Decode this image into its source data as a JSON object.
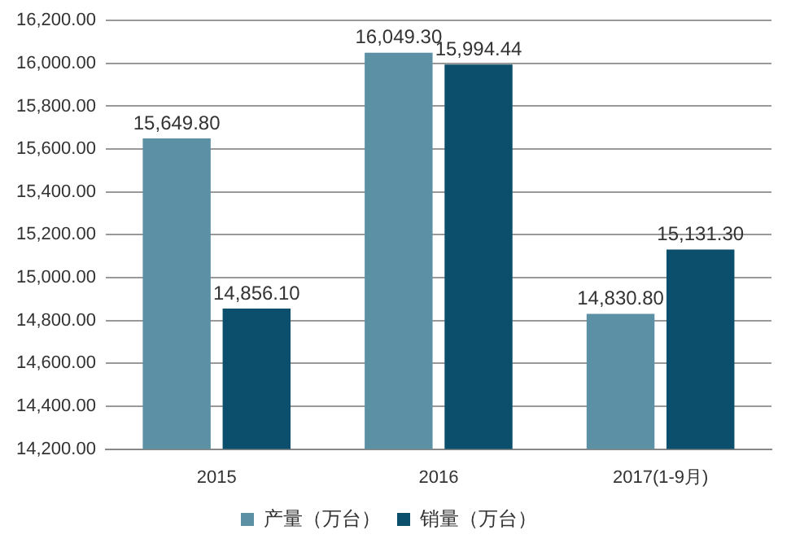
{
  "chart_data": {
    "type": "bar",
    "categories": [
      "2015",
      "2016",
      "2017(1-9月)"
    ],
    "series": [
      {
        "name": "产量（万台）",
        "color": "#5b90a5",
        "values": [
          15649.8,
          16049.3,
          14830.8
        ],
        "value_labels": [
          "15,649.80",
          "16,049.30",
          "14,830.80"
        ]
      },
      {
        "name": "销量（万台）",
        "color": "#0b4f6c",
        "values": [
          14856.1,
          15994.44,
          15131.3
        ],
        "value_labels": [
          "14,856.10",
          "15,994.44",
          "15,131.30"
        ]
      }
    ],
    "ylim": [
      14200,
      16200
    ],
    "yticks": [
      {
        "value": 14200,
        "label": "14,200.00"
      },
      {
        "value": 14400,
        "label": "14,400.00"
      },
      {
        "value": 14600,
        "label": "14,600.00"
      },
      {
        "value": 14800,
        "label": "14,800.00"
      },
      {
        "value": 15000,
        "label": "15,000.00"
      },
      {
        "value": 15200,
        "label": "15,200.00"
      },
      {
        "value": 15400,
        "label": "15,400.00"
      },
      {
        "value": 15600,
        "label": "15,600.00"
      },
      {
        "value": 15800,
        "label": "15,800.00"
      },
      {
        "value": 16000,
        "label": "16,000.00"
      },
      {
        "value": 16200,
        "label": "16,200.00"
      }
    ],
    "grid": "y",
    "legend": "bottom"
  }
}
